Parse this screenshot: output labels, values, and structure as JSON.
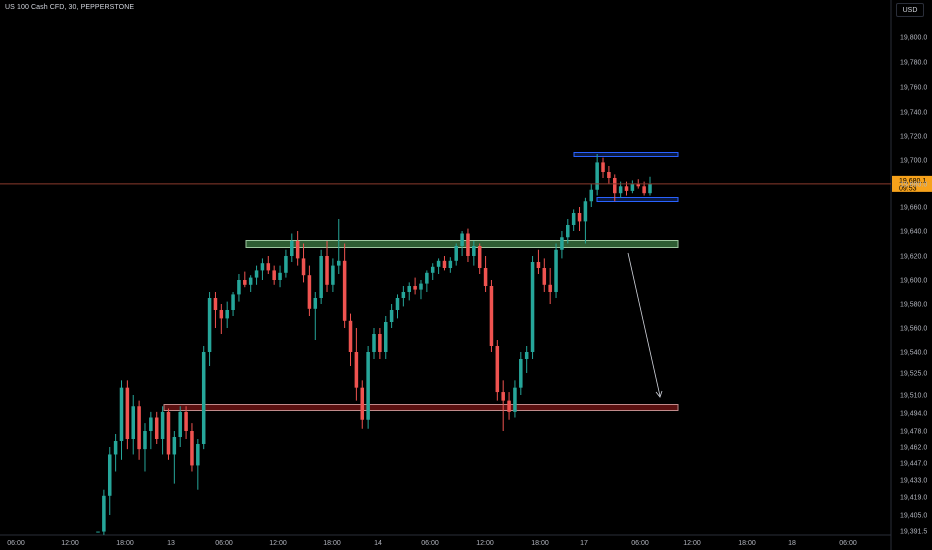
{
  "header": {
    "symbol_title": "US 100 Cash CFD, 30, PEPPERSTONE",
    "currency": "USD"
  },
  "colors": {
    "up": "#26a69a",
    "down": "#ef5350",
    "background": "#000000",
    "price_line": "#8a3b2c",
    "price_tag": "#f7a21b",
    "zone_blue": "#2962ff",
    "zone_green": "#2f5d34",
    "zone_red": "#5a1010"
  },
  "price_label": {
    "price": "19,680.1",
    "countdown": "09:53"
  },
  "chart_data": {
    "type": "candlestick",
    "title": "US 100 Cash CFD, 30, PEPPERSTONE",
    "yaxis_ticks": [
      "19,800.0",
      "19,780.0",
      "19,760.0",
      "19,740.0",
      "19,720.0",
      "19,700.0",
      "19,680.0",
      "19,660.0",
      "19,640.0",
      "19,620.0",
      "19,600.0",
      "19,580.0",
      "19,560.0",
      "19,540.0",
      "19,525.0",
      "19,510.0",
      "19,494.0",
      "19,478.0",
      "19,462.0",
      "19,447.0",
      "19,433.0",
      "19,419.0",
      "19,405.0",
      "19,391.5"
    ],
    "xaxis_ticks": [
      "06:00",
      "12:00",
      "18:00",
      "13",
      "06:00",
      "12:00",
      "18:00",
      "14",
      "06:00",
      "12:00",
      "18:00",
      "17",
      "06:00",
      "12:00",
      "18:00",
      "18",
      "06:00"
    ],
    "current_price": 19680.1,
    "candles": [
      [
        19391,
        19391,
        19391,
        19391
      ],
      [
        19391,
        19425,
        19388,
        19420
      ],
      [
        19420,
        19462,
        19405,
        19455
      ],
      [
        19455,
        19475,
        19440,
        19468
      ],
      [
        19468,
        19520,
        19450,
        19515
      ],
      [
        19515,
        19520,
        19460,
        19470
      ],
      [
        19470,
        19510,
        19455,
        19500
      ],
      [
        19500,
        19505,
        19450,
        19460
      ],
      [
        19460,
        19485,
        19440,
        19478
      ],
      [
        19478,
        19495,
        19460,
        19490
      ],
      [
        19490,
        19495,
        19465,
        19470
      ],
      [
        19470,
        19500,
        19455,
        19495
      ],
      [
        19495,
        19498,
        19450,
        19455
      ],
      [
        19455,
        19478,
        19430,
        19472
      ],
      [
        19472,
        19500,
        19462,
        19495
      ],
      [
        19495,
        19500,
        19470,
        19478
      ],
      [
        19478,
        19485,
        19440,
        19445
      ],
      [
        19445,
        19470,
        19425,
        19465
      ],
      [
        19465,
        19545,
        19460,
        19540
      ],
      [
        19540,
        19590,
        19530,
        19585
      ],
      [
        19585,
        19590,
        19560,
        19575
      ],
      [
        19575,
        19580,
        19555,
        19568
      ],
      [
        19568,
        19582,
        19560,
        19575
      ],
      [
        19575,
        19590,
        19570,
        19588
      ],
      [
        19588,
        19605,
        19582,
        19600
      ],
      [
        19600,
        19607,
        19594,
        19596
      ],
      [
        19596,
        19604,
        19590,
        19602
      ],
      [
        19602,
        19612,
        19596,
        19608
      ],
      [
        19608,
        19618,
        19600,
        19614
      ],
      [
        19614,
        19620,
        19605,
        19608
      ],
      [
        19608,
        19612,
        19596,
        19600
      ],
      [
        19600,
        19612,
        19594,
        19606
      ],
      [
        19606,
        19625,
        19602,
        19620
      ],
      [
        19620,
        19638,
        19615,
        19632
      ],
      [
        19632,
        19640,
        19612,
        19618
      ],
      [
        19618,
        19630,
        19598,
        19604
      ],
      [
        19604,
        19612,
        19570,
        19576
      ],
      [
        19576,
        19590,
        19550,
        19585
      ],
      [
        19585,
        19625,
        19580,
        19620
      ],
      [
        19620,
        19632,
        19590,
        19596
      ],
      [
        19596,
        19618,
        19590,
        19612
      ],
      [
        19612,
        19650,
        19605,
        19616
      ],
      [
        19616,
        19630,
        19560,
        19566
      ],
      [
        19566,
        19572,
        19530,
        19540
      ],
      [
        19540,
        19560,
        19505,
        19515
      ],
      [
        19515,
        19520,
        19480,
        19488
      ],
      [
        19488,
        19545,
        19480,
        19540
      ],
      [
        19540,
        19560,
        19535,
        19555
      ],
      [
        19555,
        19560,
        19535,
        19540
      ],
      [
        19540,
        19570,
        19535,
        19565
      ],
      [
        19565,
        19580,
        19560,
        19575
      ],
      [
        19575,
        19588,
        19568,
        19585
      ],
      [
        19585,
        19595,
        19578,
        19590
      ],
      [
        19590,
        19598,
        19583,
        19595
      ],
      [
        19595,
        19602,
        19588,
        19592
      ],
      [
        19592,
        19600,
        19584,
        19597
      ],
      [
        19597,
        19608,
        19590,
        19606
      ],
      [
        19606,
        19614,
        19600,
        19611
      ],
      [
        19611,
        19618,
        19605,
        19616
      ],
      [
        19616,
        19620,
        19608,
        19610
      ],
      [
        19610,
        19619,
        19606,
        19616
      ],
      [
        19616,
        19630,
        19612,
        19628
      ],
      [
        19628,
        19640,
        19620,
        19638
      ],
      [
        19638,
        19642,
        19615,
        19620
      ],
      [
        19620,
        19632,
        19612,
        19628
      ],
      [
        19628,
        19630,
        19605,
        19610
      ],
      [
        19610,
        19620,
        19590,
        19595
      ],
      [
        19595,
        19600,
        19540,
        19545
      ],
      [
        19545,
        19550,
        19505,
        19512
      ],
      [
        19512,
        19520,
        19478,
        19505
      ],
      [
        19505,
        19512,
        19488,
        19495
      ],
      [
        19495,
        19520,
        19490,
        19515
      ],
      [
        19515,
        19540,
        19510,
        19535
      ],
      [
        19535,
        19545,
        19525,
        19540
      ],
      [
        19540,
        19620,
        19535,
        19615
      ],
      [
        19615,
        19625,
        19605,
        19610
      ],
      [
        19610,
        19618,
        19590,
        19596
      ],
      [
        19596,
        19610,
        19580,
        19590
      ],
      [
        19590,
        19630,
        19585,
        19625
      ],
      [
        19625,
        19640,
        19618,
        19635
      ],
      [
        19635,
        19650,
        19630,
        19645
      ],
      [
        19645,
        19658,
        19640,
        19655
      ],
      [
        19655,
        19660,
        19640,
        19648
      ],
      [
        19648,
        19668,
        19630,
        19665
      ],
      [
        19665,
        19680,
        19660,
        19675
      ],
      [
        19675,
        19705,
        19670,
        19698
      ],
      [
        19698,
        19702,
        19685,
        19690
      ],
      [
        19690,
        19695,
        19680,
        19685
      ],
      [
        19685,
        19688,
        19665,
        19672
      ],
      [
        19672,
        19682,
        19668,
        19678
      ],
      [
        19678,
        19682,
        19670,
        19674
      ],
      [
        19674,
        19683,
        19672,
        19680
      ],
      [
        19680,
        19684,
        19676,
        19678
      ],
      [
        19678,
        19682,
        19670,
        19672
      ],
      [
        19672,
        19686,
        19670,
        19680
      ]
    ]
  }
}
